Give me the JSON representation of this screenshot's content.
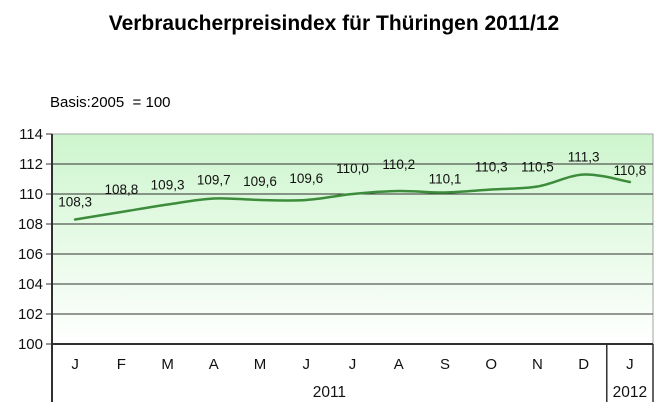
{
  "title": "Verbraucherpreisindex für Thüringen 2011/12",
  "basis_label": "Basis:2005  = 100",
  "chart_data": {
    "type": "line",
    "title": "Verbraucherpreisindex für Thüringen 2011/12",
    "subtitle": "Basis:2005  = 100",
    "x": [
      "J",
      "F",
      "M",
      "A",
      "M",
      "J",
      "J",
      "A",
      "S",
      "O",
      "N",
      "D",
      "J"
    ],
    "year_groups": [
      {
        "label": "2011",
        "months": 12
      },
      {
        "label": "2012",
        "months": 1
      }
    ],
    "series": [
      {
        "name": "Verbraucherpreisindex",
        "values": [
          108.3,
          108.8,
          109.3,
          109.7,
          109.6,
          109.6,
          110.0,
          110.2,
          110.1,
          110.3,
          110.5,
          111.3,
          110.8
        ]
      }
    ],
    "data_labels": [
      "108,3",
      "108,8",
      "109,3",
      "109,7",
      "109,6",
      "109,6",
      "110,0",
      "110,2",
      "110,1",
      "110,3",
      "110,5",
      "111,3",
      "110,8"
    ],
    "ylim": [
      100,
      114
    ],
    "ytick_step": 2,
    "yticks": [
      "114",
      "112",
      "110",
      "108",
      "106",
      "104",
      "102",
      "100"
    ],
    "grid": true,
    "legend": "none",
    "line_color": "#3c8c3c",
    "plot_bg_top": "#cdf5cd",
    "plot_bg_bottom": "#ffffff",
    "grid_color": "#303030",
    "frame_color": "#a3a3a3",
    "text_color": "#111111"
  }
}
